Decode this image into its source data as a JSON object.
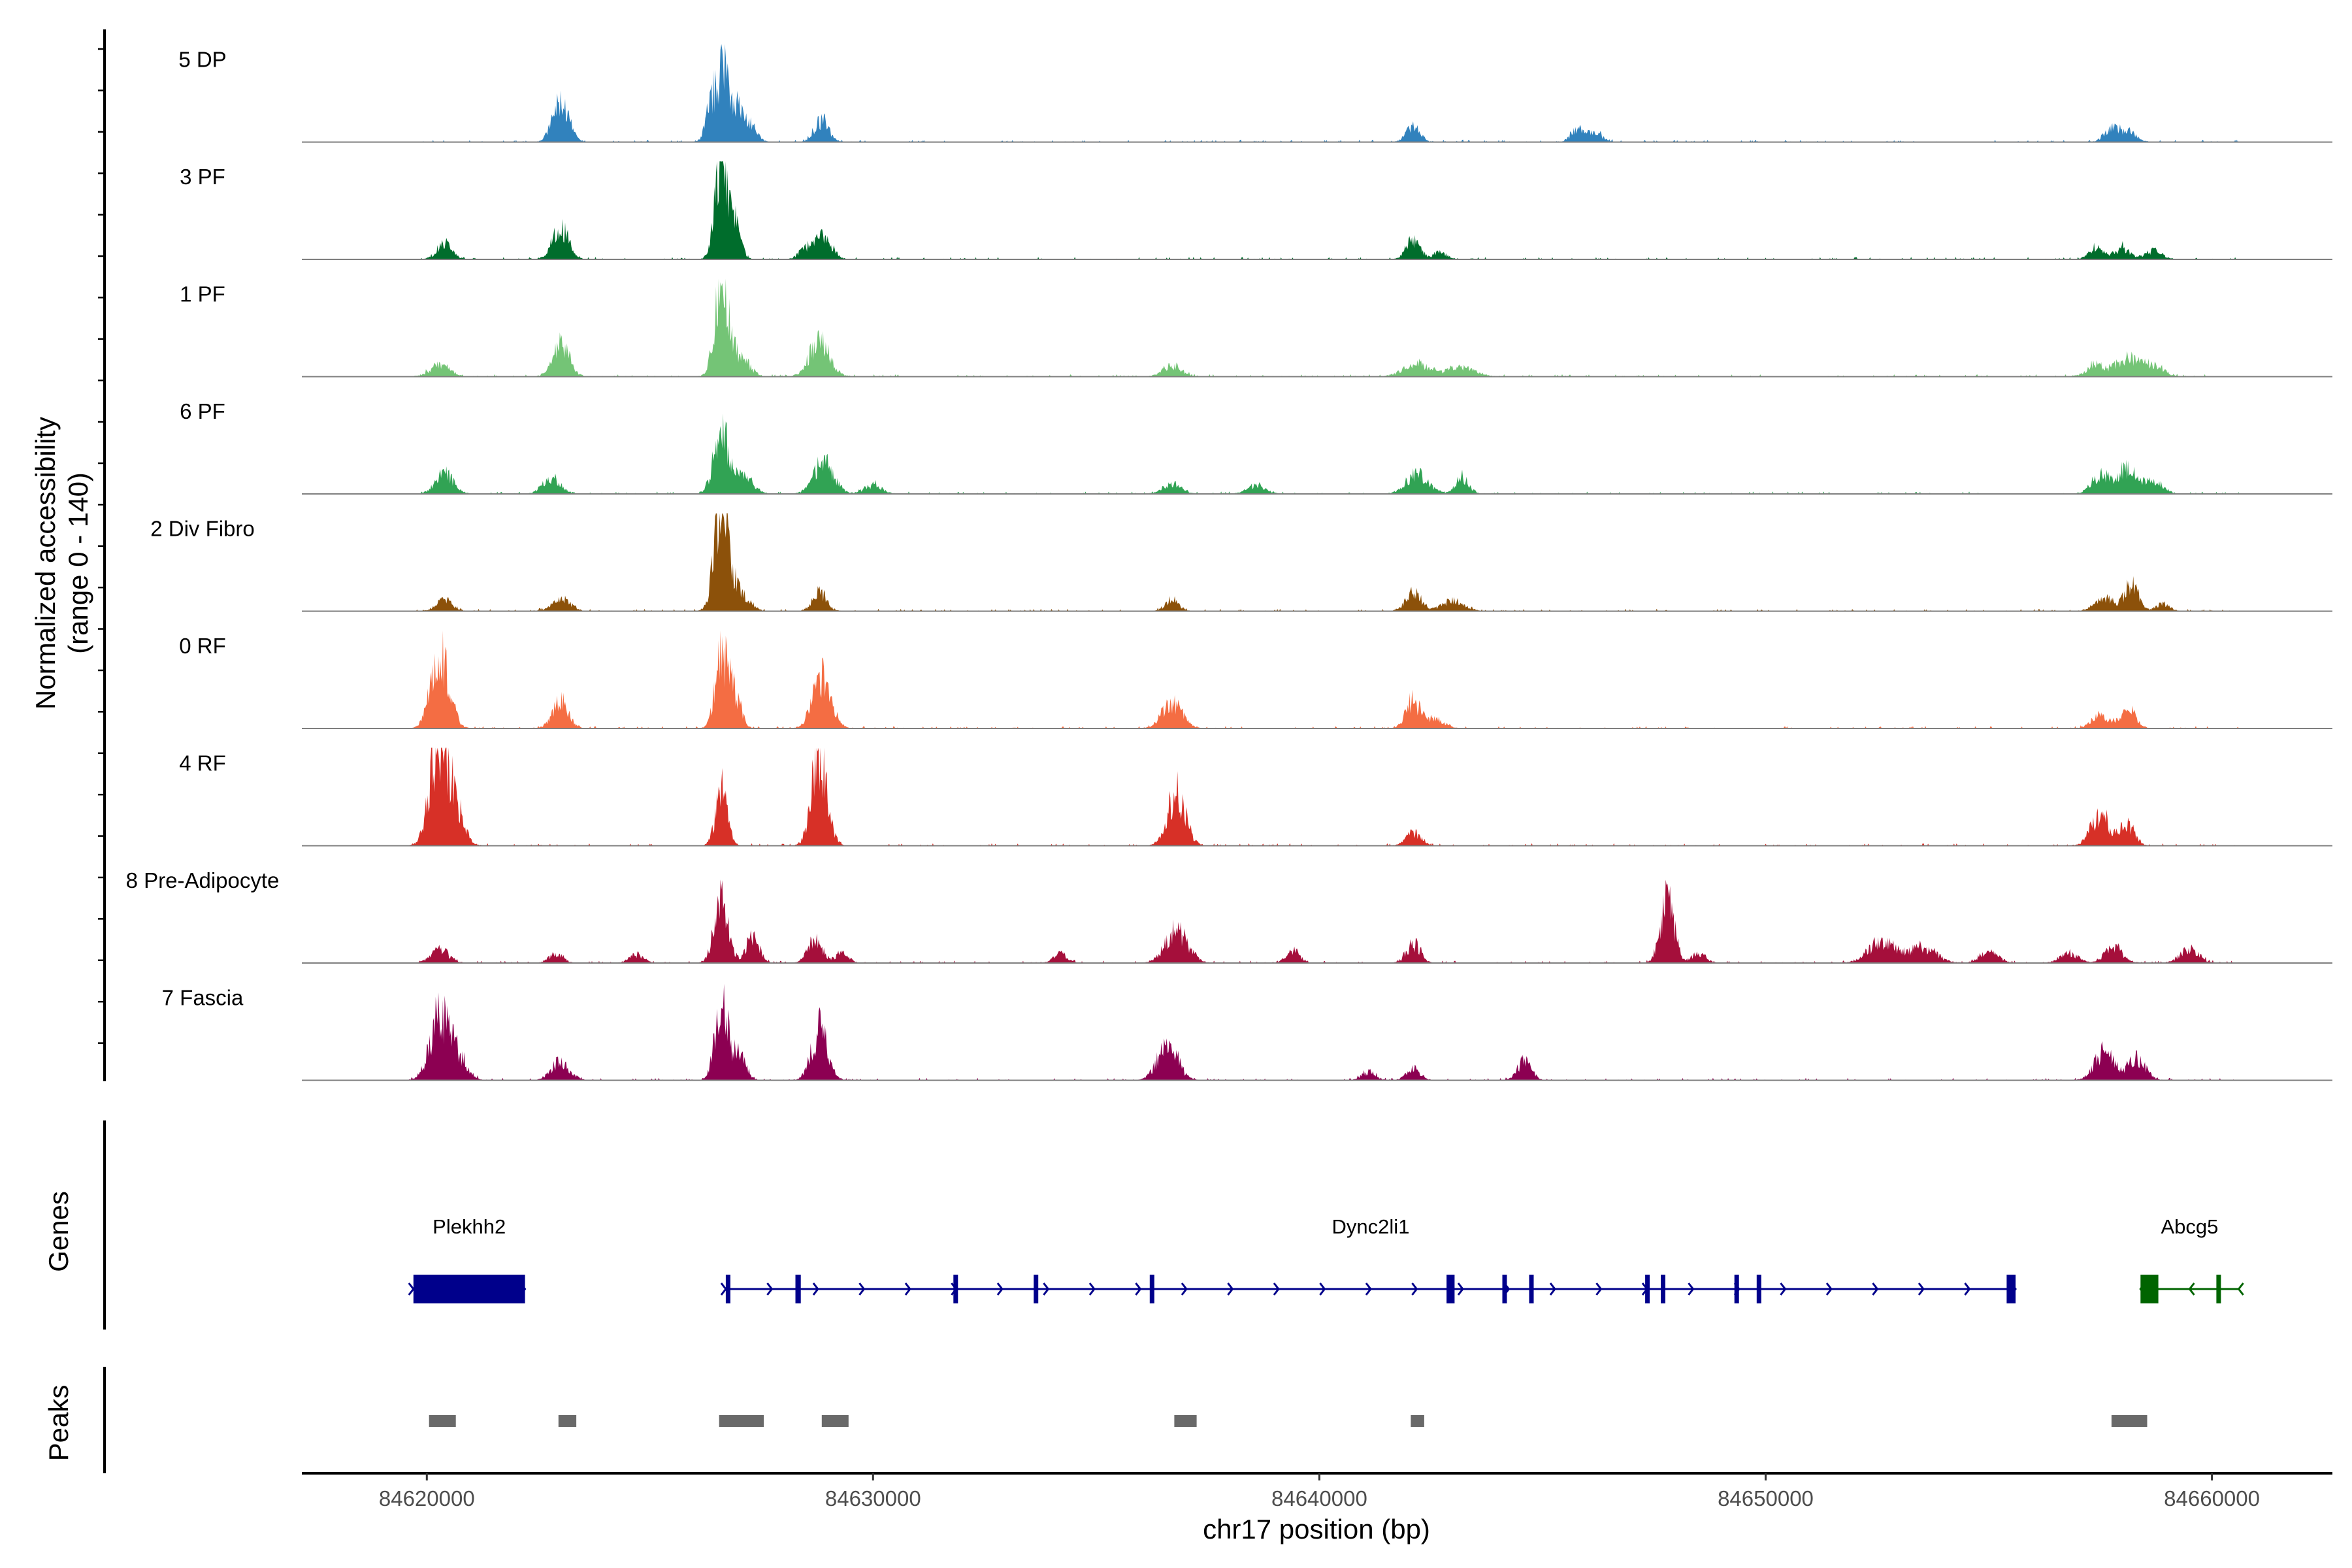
{
  "chart_data": {
    "type": "area",
    "title": "",
    "xlabel": "chr17 position (bp)",
    "ylabel": "Normalized accessibility\n(range 0 - 140)",
    "ylabel_lines": [
      "Normalized accessibility",
      "(range 0 - 140)"
    ],
    "y_range": [
      0,
      140
    ],
    "xlim": [
      84617200,
      84662700
    ],
    "track_start": 84619600,
    "track_end": 84660600,
    "x_ticks": [
      84620000,
      84630000,
      84640000,
      84650000,
      84660000
    ],
    "x_tick_labels": [
      "84620000",
      "84630000",
      "84640000",
      "84650000",
      "84660000"
    ],
    "tracks": [
      {
        "name": "5 DP",
        "color": "#3182bd",
        "peaks": [
          [
            84623000,
            55,
            180
          ],
          [
            84626400,
            68,
            120
          ],
          [
            84626650,
            118,
            90
          ],
          [
            84626900,
            52,
            120
          ],
          [
            84627200,
            28,
            160
          ],
          [
            84628850,
            30,
            160
          ],
          [
            84642100,
            22,
            150
          ],
          [
            84645800,
            18,
            150
          ],
          [
            84646200,
            12,
            150
          ],
          [
            84657800,
            22,
            180
          ],
          [
            84658200,
            12,
            150
          ]
        ]
      },
      {
        "name": "3 PF",
        "color": "#006d2c",
        "peaks": [
          [
            84620400,
            22,
            170
          ],
          [
            84623000,
            45,
            180
          ],
          [
            84626600,
            140,
            140
          ],
          [
            84626900,
            50,
            130
          ],
          [
            84628900,
            32,
            170
          ],
          [
            84628500,
            16,
            150
          ],
          [
            84642100,
            28,
            150
          ],
          [
            84642700,
            10,
            150
          ],
          [
            84657400,
            18,
            150
          ],
          [
            84658000,
            16,
            180
          ],
          [
            84658700,
            12,
            180
          ]
        ]
      },
      {
        "name": "1 PF",
        "color": "#74c476",
        "peaks": [
          [
            84620300,
            16,
            220
          ],
          [
            84623000,
            50,
            180
          ],
          [
            84626600,
            128,
            150
          ],
          [
            84627000,
            30,
            200
          ],
          [
            84628800,
            50,
            220
          ],
          [
            84636700,
            16,
            200
          ],
          [
            84642200,
            18,
            300
          ],
          [
            84643200,
            12,
            300
          ],
          [
            84657400,
            16,
            200
          ],
          [
            84658100,
            26,
            250
          ],
          [
            84658700,
            18,
            200
          ]
        ]
      },
      {
        "name": "6 PF",
        "color": "#31a354",
        "peaks": [
          [
            84620400,
            28,
            200
          ],
          [
            84622800,
            22,
            200
          ],
          [
            84626600,
            85,
            170
          ],
          [
            84627100,
            28,
            200
          ],
          [
            84628900,
            45,
            220
          ],
          [
            84630000,
            12,
            200
          ],
          [
            84636700,
            14,
            200
          ],
          [
            84638600,
            12,
            200
          ],
          [
            84642200,
            28,
            250
          ],
          [
            84643200,
            22,
            150
          ],
          [
            84657500,
            26,
            200
          ],
          [
            84658100,
            34,
            220
          ],
          [
            84658700,
            18,
            200
          ]
        ]
      },
      {
        "name": "2 Div Fibro",
        "color": "#8c510a",
        "peaks": [
          [
            84620400,
            16,
            180
          ],
          [
            84623000,
            18,
            200
          ],
          [
            84626600,
            140,
            160
          ],
          [
            84627000,
            30,
            200
          ],
          [
            84628800,
            26,
            160
          ],
          [
            84636700,
            16,
            150
          ],
          [
            84642100,
            28,
            170
          ],
          [
            84643000,
            14,
            250
          ],
          [
            84657600,
            18,
            220
          ],
          [
            84658200,
            40,
            150
          ],
          [
            84658900,
            10,
            150
          ]
        ]
      },
      {
        "name": "0 RF",
        "color": "#f46d43",
        "peaks": [
          [
            84620300,
            108,
            200
          ],
          [
            84623000,
            38,
            180
          ],
          [
            84626600,
            105,
            140
          ],
          [
            84626900,
            45,
            140
          ],
          [
            84628850,
            78,
            200
          ],
          [
            84636700,
            38,
            220
          ],
          [
            84642100,
            38,
            160
          ],
          [
            84642600,
            14,
            200
          ],
          [
            84657500,
            18,
            180
          ],
          [
            84658100,
            28,
            180
          ]
        ]
      },
      {
        "name": "4 RF",
        "color": "#d73027",
        "peaks": [
          [
            84620250,
            140,
            190
          ],
          [
            84620600,
            60,
            200
          ],
          [
            84626600,
            80,
            130
          ],
          [
            84628800,
            135,
            170
          ],
          [
            84636800,
            75,
            200
          ],
          [
            84642100,
            18,
            170
          ],
          [
            84657500,
            45,
            200
          ],
          [
            84658100,
            30,
            160
          ]
        ]
      },
      {
        "name": "8 Pre-Adipocyte",
        "color": "#a50f3b",
        "peaks": [
          [
            84620300,
            18,
            200
          ],
          [
            84622900,
            14,
            150
          ],
          [
            84624700,
            12,
            150
          ],
          [
            84626600,
            85,
            160
          ],
          [
            84627300,
            40,
            140
          ],
          [
            84628700,
            32,
            160
          ],
          [
            84629300,
            14,
            150
          ],
          [
            84634200,
            12,
            150
          ],
          [
            84636800,
            45,
            250
          ],
          [
            84639400,
            18,
            150
          ],
          [
            84642100,
            28,
            150
          ],
          [
            84647800,
            92,
            150
          ],
          [
            84648500,
            14,
            150
          ],
          [
            84652600,
            30,
            300
          ],
          [
            84653500,
            22,
            300
          ],
          [
            84655000,
            16,
            200
          ],
          [
            84656800,
            14,
            200
          ],
          [
            84657800,
            22,
            200
          ],
          [
            84659500,
            20,
            200
          ]
        ]
      },
      {
        "name": "7 Fascia",
        "color": "#8c0052",
        "peaks": [
          [
            84620300,
            90,
            220
          ],
          [
            84620700,
            30,
            200
          ],
          [
            84623000,
            26,
            200
          ],
          [
            84626600,
            115,
            140
          ],
          [
            84627000,
            35,
            150
          ],
          [
            84628800,
            72,
            180
          ],
          [
            84636600,
            50,
            220
          ],
          [
            84641100,
            12,
            150
          ],
          [
            84642100,
            16,
            150
          ],
          [
            84644600,
            28,
            150
          ],
          [
            84657600,
            40,
            220
          ],
          [
            84658300,
            30,
            200
          ]
        ]
      }
    ],
    "genes_label": "Genes",
    "peaks_label": "Peaks",
    "genes": [
      {
        "name": "Plekhh2",
        "color": "#00008b",
        "start": 84619700,
        "end": 84622200,
        "strand": "+",
        "blocks": [
          [
            84619700,
            84622200
          ]
        ]
      },
      {
        "name": "Dync2li1",
        "color": "#00008b",
        "start": 84626700,
        "end": 84655600,
        "strand": "+",
        "blocks": [
          [
            84626700,
            84626780
          ],
          [
            84628260,
            84628380
          ],
          [
            84631800,
            84631840
          ],
          [
            84633600,
            84633680
          ],
          [
            84636200,
            84636300
          ],
          [
            84642850,
            84643030
          ],
          [
            84644100,
            84644150
          ],
          [
            84644700,
            84644760
          ],
          [
            84647300,
            84647360
          ],
          [
            84647650,
            84647700
          ],
          [
            84649300,
            84649360
          ],
          [
            84649800,
            84649860
          ],
          [
            84655400,
            84655600
          ]
        ]
      },
      {
        "name": "Abcg5",
        "color": "#006400",
        "start": 84658400,
        "end": 84660600,
        "strand": "-",
        "blocks": [
          [
            84658400,
            84658800
          ],
          [
            84660100,
            84660160
          ]
        ]
      }
    ],
    "peak_regions": [
      [
        84620050,
        84620650
      ],
      [
        84622950,
        84623350
      ],
      [
        84626550,
        84627550
      ],
      [
        84628850,
        84629450
      ],
      [
        84636750,
        84637250
      ],
      [
        84642050,
        84642350
      ],
      [
        84657750,
        84658550
      ]
    ]
  }
}
